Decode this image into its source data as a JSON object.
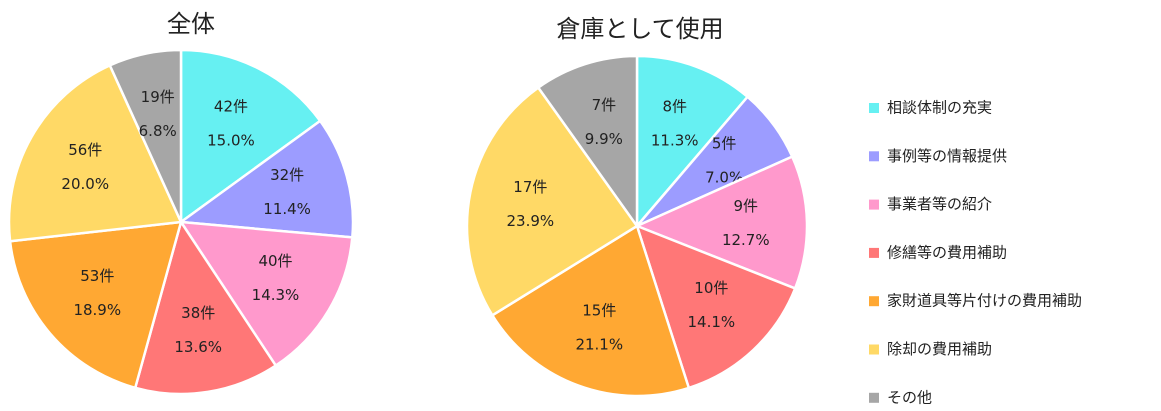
{
  "chart_data": [
    {
      "type": "pie",
      "title": "全体",
      "values": [
        42,
        32,
        40,
        38,
        53,
        56,
        19
      ],
      "value_labels": [
        "42件",
        "32件",
        "40件",
        "38件",
        "53件",
        "56件",
        "19件"
      ],
      "percent_labels": [
        "15.0%",
        "11.4%",
        "14.3%",
        "13.6%",
        "18.9%",
        "20.0%",
        "6.8%"
      ]
    },
    {
      "type": "pie",
      "title": "倉庫として使用",
      "values": [
        8,
        5,
        9,
        10,
        15,
        17,
        7
      ],
      "value_labels": [
        "8件",
        "5件",
        "9件",
        "10件",
        "15件",
        "17件",
        "7件"
      ],
      "percent_labels": [
        "11.3%",
        "7.0%",
        "12.7%",
        "14.1%",
        "21.1%",
        "23.9%",
        "9.9%"
      ]
    }
  ],
  "legend": {
    "position": "right",
    "categories": [
      "相談体制の充実",
      "事例等の情報提供",
      "事業者等の紹介",
      "修繕等の費用補助",
      "家財道具等片付けの費用補助",
      "除却の費用補助",
      "その他"
    ],
    "colors": [
      "#66f0f2",
      "#9c9cff",
      "#ff99cc",
      "#ff7777",
      "#ffa833",
      "#ffd966",
      "#a6a6a6"
    ]
  }
}
